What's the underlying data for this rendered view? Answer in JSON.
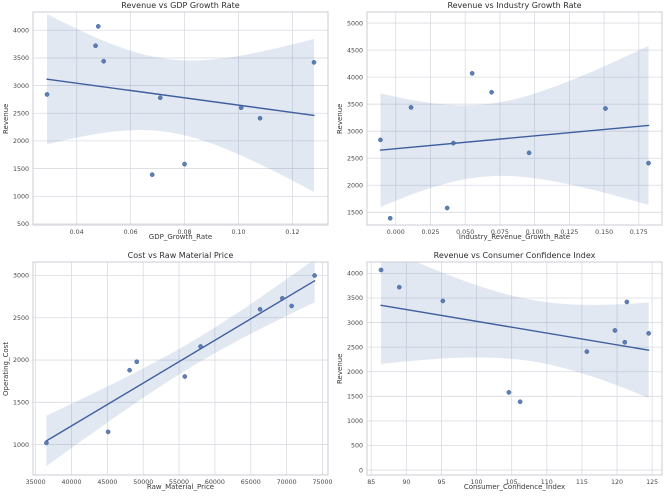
{
  "figure": {
    "background": "#ffffff",
    "style": {
      "marker_color": "#4c72b0",
      "marker_edge_color": "#3b5a94",
      "line_color": "#3e5f9e",
      "band_color": "#4c72b0",
      "band_opacity": 0.16,
      "grid_color": "#d9dce3",
      "spine_color": "#c8ccd4",
      "title_color": "#2d2d2d",
      "tick_color": "#454545",
      "label_color": "#383838"
    }
  },
  "chart_data": [
    {
      "type": "scatter",
      "title": "Revenue vs GDP Growth Rate",
      "xlabel": "GDP_Growth_Rate",
      "ylabel": "Revenue",
      "xlim": [
        0.0238,
        0.1332
      ],
      "ylim": [
        480,
        4330
      ],
      "xtick_values": [
        0.04,
        0.06,
        0.08,
        0.1,
        0.12
      ],
      "xtick_labels": [
        "0.04",
        "0.06",
        "0.08",
        "0.10",
        "0.12"
      ],
      "ytick_values": [
        500,
        1000,
        1500,
        2000,
        2500,
        3000,
        3500,
        4000
      ],
      "ytick_labels": [
        "500",
        "1000",
        "1500",
        "2000",
        "2500",
        "3000",
        "3500",
        "4000"
      ],
      "points": [
        [
          0.029,
          2840
        ],
        [
          0.047,
          3720
        ],
        [
          0.048,
          4070
        ],
        [
          0.05,
          3440
        ],
        [
          0.068,
          1390
        ],
        [
          0.071,
          2780
        ],
        [
          0.08,
          1580
        ],
        [
          0.101,
          2600
        ],
        [
          0.108,
          2410
        ],
        [
          0.128,
          3420
        ]
      ],
      "regression_line": true,
      "ci_level": 95,
      "grid": true,
      "legend": "none"
    },
    {
      "type": "scatter",
      "title": "Revenue vs Industry Growth Rate",
      "xlabel": "Industry_Revenue_Growth_Rate",
      "ylabel": "Revenue",
      "xlim": [
        -0.0207,
        0.1917
      ],
      "ylim": [
        1265,
        5205
      ],
      "xtick_values": [
        0.0,
        0.025,
        0.05,
        0.075,
        0.1,
        0.125,
        0.15,
        0.175
      ],
      "xtick_labels": [
        "0.000",
        "0.025",
        "0.050",
        "0.075",
        "0.100",
        "0.125",
        "0.150",
        "0.175"
      ],
      "ytick_values": [
        1500,
        2000,
        2500,
        3000,
        3500,
        4000,
        4500,
        5000
      ],
      "ytick_labels": [
        "1500",
        "2000",
        "2500",
        "3000",
        "3500",
        "4000",
        "4500",
        "5000"
      ],
      "points": [
        [
          -0.011,
          2840
        ],
        [
          -0.004,
          1390
        ],
        [
          0.011,
          3440
        ],
        [
          0.037,
          1580
        ],
        [
          0.0415,
          2780
        ],
        [
          0.055,
          4070
        ],
        [
          0.069,
          3720
        ],
        [
          0.096,
          2600
        ],
        [
          0.151,
          3420
        ],
        [
          0.182,
          2410
        ]
      ],
      "regression_line": true,
      "ci_level": 95,
      "grid": true,
      "legend": "none"
    },
    {
      "type": "scatter",
      "title": "Cost vs Raw Material Price",
      "xlabel": "Raw_Material_Price",
      "ylabel": "Operating_Cost",
      "xlim": [
        34630,
        75770
      ],
      "ylim": [
        640,
        3160
      ],
      "xtick_values": [
        35000,
        40000,
        45000,
        50000,
        55000,
        60000,
        65000,
        70000,
        75000
      ],
      "xtick_labels": [
        "35000",
        "40000",
        "45000",
        "50000",
        "55000",
        "60000",
        "65000",
        "70000",
        "75000"
      ],
      "ytick_values": [
        1000,
        1500,
        2000,
        2500,
        3000
      ],
      "ytick_labels": [
        "1000",
        "1500",
        "2000",
        "2500",
        "3000"
      ],
      "points": [
        [
          36500,
          1020
        ],
        [
          45100,
          1150
        ],
        [
          48100,
          1880
        ],
        [
          49100,
          1980
        ],
        [
          55800,
          1805
        ],
        [
          58000,
          2160
        ],
        [
          66300,
          2600
        ],
        [
          69400,
          2730
        ],
        [
          70700,
          2640
        ],
        [
          73900,
          3000
        ]
      ],
      "regression_line": true,
      "ci_level": 95,
      "grid": true,
      "legend": "none"
    },
    {
      "type": "scatter",
      "title": "Revenue vs Consumer Confidence Index",
      "xlabel": "Consumer_Confidence_Index",
      "ylabel": "Revenue",
      "xlim": [
        84.4,
        126.4
      ],
      "ylim": [
        -100,
        4232
      ],
      "xtick_values": [
        85,
        90,
        95,
        100,
        105,
        110,
        115,
        120,
        125
      ],
      "xtick_labels": [
        "85",
        "90",
        "95",
        "100",
        "105",
        "110",
        "115",
        "120",
        "125"
      ],
      "ytick_values": [
        0,
        500,
        1000,
        1500,
        2000,
        2500,
        3000,
        3500,
        4000
      ],
      "ytick_labels": [
        "0",
        "500",
        "1000",
        "1500",
        "2000",
        "2500",
        "3000",
        "3500",
        "4000"
      ],
      "points": [
        [
          86.4,
          4070
        ],
        [
          89.0,
          3720
        ],
        [
          95.2,
          3440
        ],
        [
          104.6,
          1580
        ],
        [
          106.2,
          1390
        ],
        [
          115.7,
          2410
        ],
        [
          119.7,
          2840
        ],
        [
          121.1,
          2600
        ],
        [
          121.4,
          3420
        ],
        [
          124.5,
          2780
        ]
      ],
      "regression_line": true,
      "ci_level": 95,
      "grid": true,
      "legend": "none"
    }
  ]
}
